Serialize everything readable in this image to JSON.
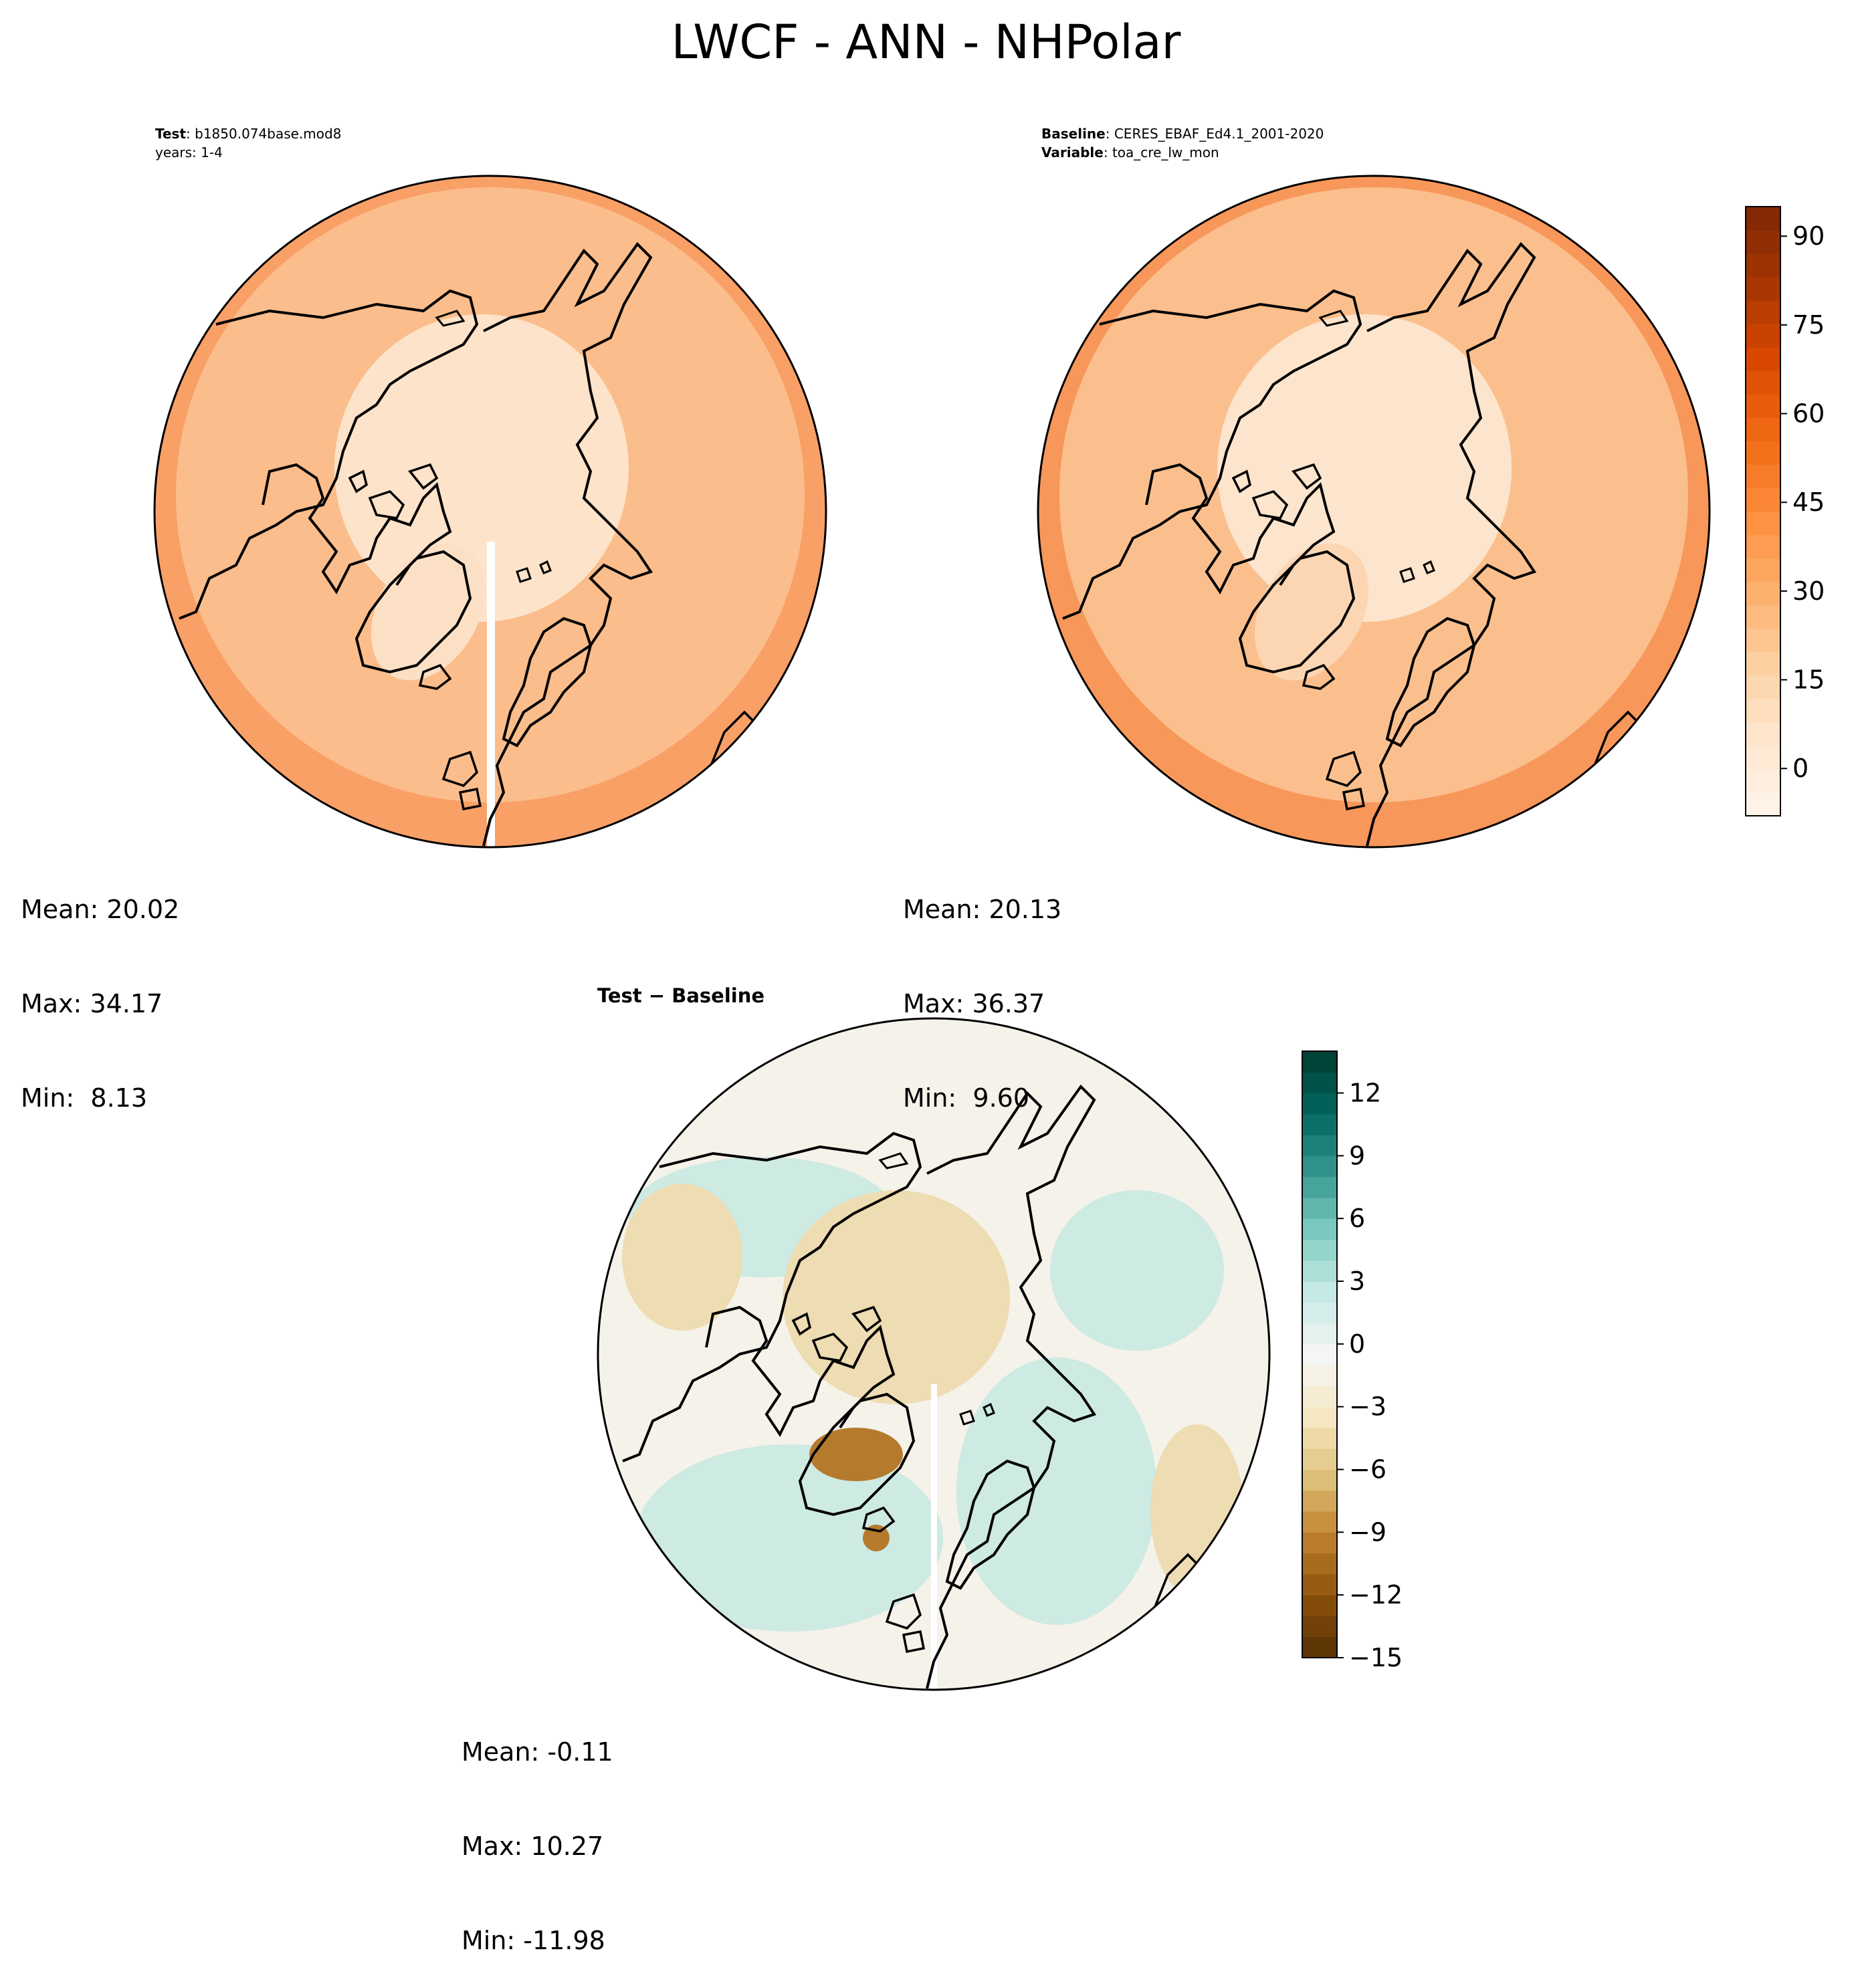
{
  "figure": {
    "title": "LWCF - ANN - NHPolar"
  },
  "panels": {
    "test": {
      "label": "Test",
      "case": "b1850.074base.mod8",
      "years": "years: 1-4",
      "stats": {
        "mean": "Mean: 20.02",
        "max": "Max: 34.17",
        "min": "Min:  8.13"
      },
      "colors": {
        "outer": "#f9a067",
        "mid": "#fbbd8b",
        "inner": "#fde3c9",
        "ice": "#fce0c5"
      }
    },
    "baseline": {
      "label": "Baseline",
      "case": "CERES_EBAF_Ed4.1_2001-2020",
      "variable_label": "Variable",
      "variable": "toa_cre_lw_mon",
      "stats": {
        "mean": "Mean: 20.13",
        "max": "Max: 36.37",
        "min": "Min:  9.60"
      },
      "colors": {
        "outer": "#f8975a",
        "mid": "#fbbf8e",
        "inner": "#fde5cd",
        "ice": "#fcd6b2"
      }
    },
    "difference": {
      "title": "Test − Baseline",
      "stats": {
        "mean": "Mean: -0.11",
        "max": "Max: 10.27",
        "min": "Min: -11.98"
      },
      "colors": {
        "base": "#f5f2ea",
        "teal": "#cdeae3",
        "tan": "#eedcb2",
        "brown": "#b67a2e"
      }
    }
  },
  "colorbars": {
    "top": {
      "cmap": "Oranges",
      "vmin": -8,
      "vmax": 95,
      "ticks": [
        "0",
        "15",
        "30",
        "45",
        "60",
        "75",
        "90"
      ],
      "tick_values": [
        0,
        15,
        30,
        45,
        60,
        75,
        90
      ],
      "stops": [
        "#fff5eb",
        "#fee6ce",
        "#fdd0a2",
        "#fdae6b",
        "#fd8d3c",
        "#f16913",
        "#d94801",
        "#a63603",
        "#7f2704"
      ]
    },
    "bottom": {
      "cmap": "BrBG",
      "vmin": -15,
      "vmax": 14,
      "ticks": [
        "12",
        "9",
        "6",
        "3",
        "0",
        "−3",
        "−6",
        "−9",
        "−12",
        "−15"
      ],
      "tick_values": [
        12,
        9,
        6,
        3,
        0,
        -3,
        -6,
        -9,
        -12,
        -15
      ],
      "stops": [
        "#543005",
        "#8c510a",
        "#bf812d",
        "#dfc27d",
        "#f6e8c3",
        "#f5f5f5",
        "#c7eae5",
        "#80cdc1",
        "#35978f",
        "#01665e",
        "#003c30"
      ]
    }
  }
}
